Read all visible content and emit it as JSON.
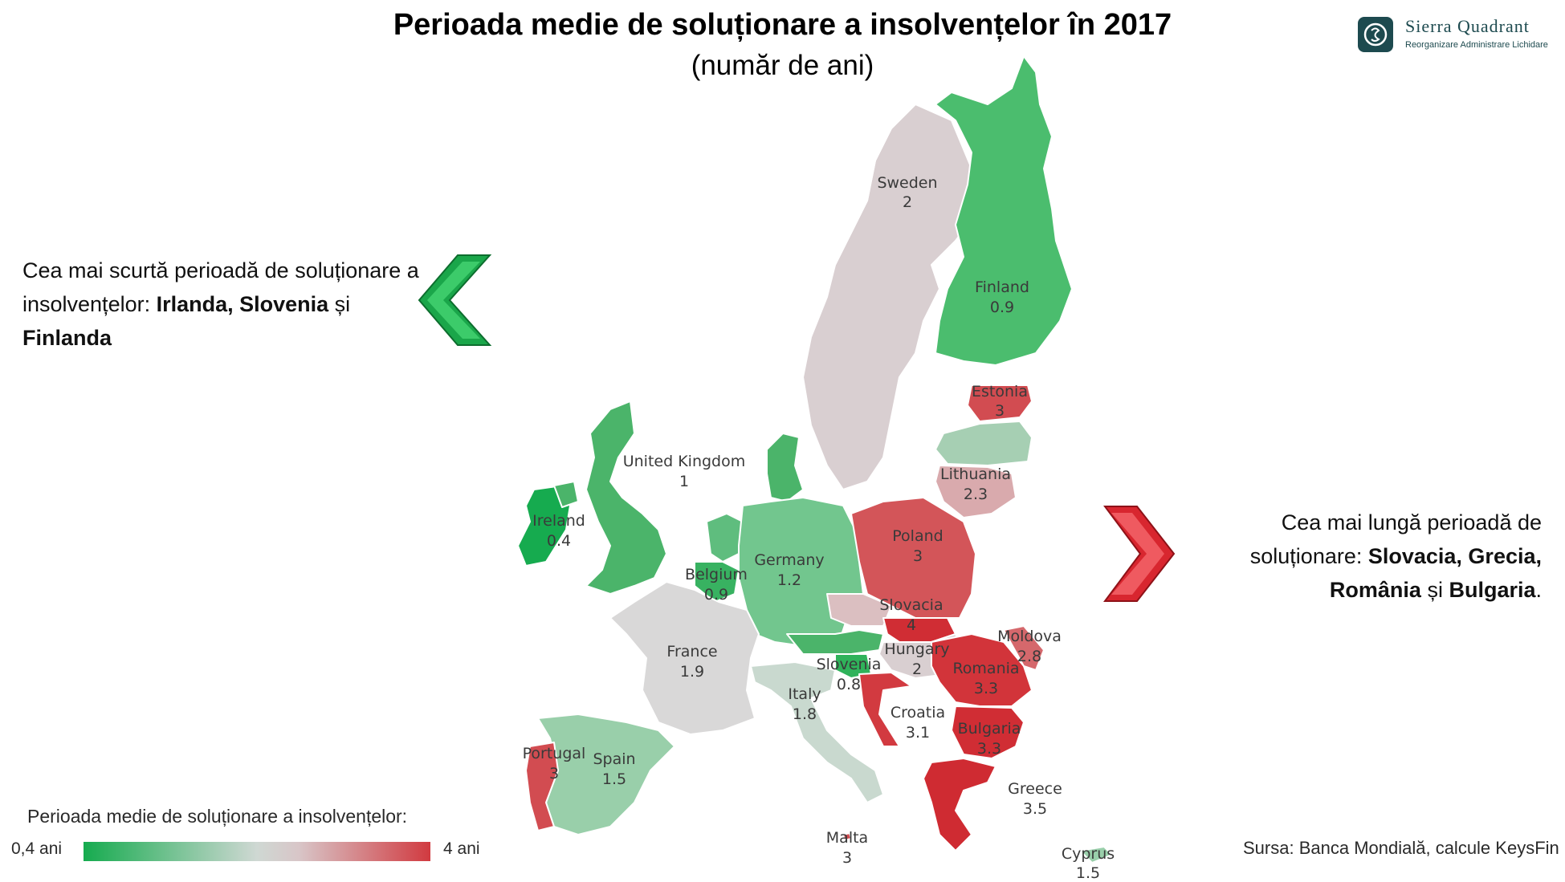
{
  "header": {
    "title": "Perioada medie de soluționare a insolvențelor în 2017",
    "subtitle": "(număr de ani)"
  },
  "logo": {
    "name": "Sierra Quadrant",
    "tagline": "Reorganizare Administrare Lichidare"
  },
  "left_note": {
    "line_prefix": "Cea mai scurtă perioadă de soluționare a insolvențelor: ",
    "bold_1": "Irlanda, Slovenia",
    "connector": " și ",
    "bold_2": "Finlanda"
  },
  "right_note": {
    "line_prefix": "Cea mai lungă perioadă de soluționare: ",
    "bold_1": "Slovacia, Grecia, România",
    "connector": " și ",
    "bold_2": "Bulgaria",
    "suffix": "."
  },
  "colors": {
    "low": "#16ab4f",
    "mid": "#d8d1d2",
    "high": "#d13a40",
    "arrow_green": "#1aa64a",
    "arrow_red": "#d8262f"
  },
  "countries": [
    {
      "name": "Sweden",
      "value": "2"
    },
    {
      "name": "Finland",
      "value": "0.9"
    },
    {
      "name": "Estonia",
      "value": "3"
    },
    {
      "name": "Lithuania",
      "value": "2.3"
    },
    {
      "name": "United Kingdom",
      "value": "1"
    },
    {
      "name": "Ireland",
      "value": "0.4"
    },
    {
      "name": "Poland",
      "value": "3"
    },
    {
      "name": "Germany",
      "value": "1.2"
    },
    {
      "name": "Belgium",
      "value": "0.9"
    },
    {
      "name": "France",
      "value": "1.9"
    },
    {
      "name": "Slovacia",
      "value": "4"
    },
    {
      "name": "Moldova",
      "value": "2.8"
    },
    {
      "name": "Hungary",
      "value": "2"
    },
    {
      "name": "Romania",
      "value": "3.3"
    },
    {
      "name": "Slovenia",
      "value": "0.8"
    },
    {
      "name": "Italy",
      "value": "1.8"
    },
    {
      "name": "Croatia",
      "value": "3.1"
    },
    {
      "name": "Bulgaria",
      "value": "3.3"
    },
    {
      "name": "Portugal",
      "value": "3"
    },
    {
      "name": "Spain",
      "value": "1.5"
    },
    {
      "name": "Greece",
      "value": "3.5"
    },
    {
      "name": "Malta",
      "value": "3"
    },
    {
      "name": "Cyprus",
      "value": "1.5"
    }
  ],
  "legend": {
    "title": "Perioada medie de soluționare a insolvențelor:",
    "min_label": "0,4 ani",
    "max_label": "4 ani"
  },
  "source": "Sursa: Banca Mondială, calcule KeysFin"
}
